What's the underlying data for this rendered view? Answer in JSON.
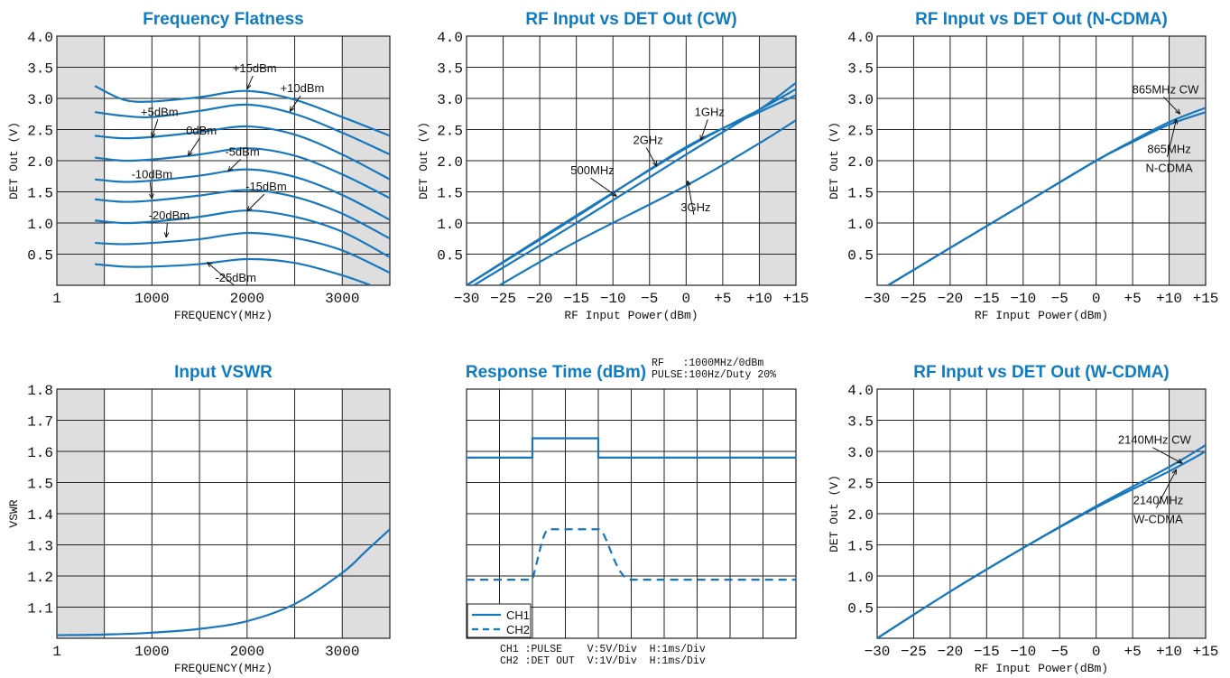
{
  "colors": {
    "series": "#1777bd",
    "shade": "#dedede",
    "grid": "#222222",
    "title": "#0f7cc1"
  },
  "chart_data": [
    {
      "id": "flatness",
      "type": "line",
      "title": "Frequency Flatness",
      "xlabel": "FREQUENCY(MHz)",
      "ylabel": "DET Out (V)",
      "xlim": [
        1,
        3500
      ],
      "ylim": [
        0,
        4.0
      ],
      "x_gridlines": [
        500,
        1000,
        1500,
        2000,
        2500,
        3000
      ],
      "y_gridlines": [
        0.5,
        1.0,
        1.5,
        2.0,
        2.5,
        3.0,
        3.5
      ],
      "xticks": [
        {
          "v": 1,
          "label": "1"
        },
        {
          "v": 1000,
          "label": "1000"
        },
        {
          "v": 2000,
          "label": "2000"
        },
        {
          "v": 3000,
          "label": "3000"
        }
      ],
      "yticks": [
        {
          "v": 0.5,
          "label": "0.5"
        },
        {
          "v": 1.0,
          "label": "1.0"
        },
        {
          "v": 1.5,
          "label": "1.5"
        },
        {
          "v": 2.0,
          "label": "2.0"
        },
        {
          "v": 2.5,
          "label": "2.5"
        },
        {
          "v": 3.0,
          "label": "3.0"
        },
        {
          "v": 3.5,
          "label": "3.5"
        },
        {
          "v": 4.0,
          "label": "4.0"
        }
      ],
      "shaded_x": [
        [
          1,
          500
        ],
        [
          3000,
          3500
        ]
      ],
      "series": [
        {
          "name": "+15dBm",
          "x": [
            400,
            700,
            1000,
            1500,
            2000,
            2500,
            3000,
            3500
          ],
          "y": [
            3.2,
            2.98,
            2.95,
            3.02,
            3.12,
            2.98,
            2.7,
            2.4
          ]
        },
        {
          "name": "+10dBm",
          "x": [
            400,
            700,
            1000,
            1500,
            2000,
            2500,
            3000,
            3500
          ],
          "y": [
            2.78,
            2.72,
            2.7,
            2.8,
            2.9,
            2.75,
            2.45,
            2.1
          ]
        },
        {
          "name": "+5dBm",
          "x": [
            400,
            700,
            1000,
            1500,
            2000,
            2500,
            3000,
            3500
          ],
          "y": [
            2.4,
            2.36,
            2.38,
            2.46,
            2.55,
            2.42,
            2.1,
            1.7
          ]
        },
        {
          "name": "0dBm",
          "x": [
            400,
            700,
            1000,
            1500,
            2000,
            2500,
            3000,
            3500
          ],
          "y": [
            2.05,
            2.0,
            2.02,
            2.1,
            2.2,
            2.08,
            1.78,
            1.4
          ]
        },
        {
          "name": "-5dBm",
          "x": [
            400,
            700,
            1000,
            1500,
            2000,
            2500,
            3000,
            3500
          ],
          "y": [
            1.7,
            1.66,
            1.68,
            1.76,
            1.86,
            1.74,
            1.45,
            1.05
          ]
        },
        {
          "name": "-10dBm",
          "x": [
            400,
            700,
            1000,
            1500,
            2000,
            2500,
            3000,
            3500
          ],
          "y": [
            1.38,
            1.34,
            1.36,
            1.44,
            1.53,
            1.42,
            1.15,
            0.75
          ]
        },
        {
          "name": "-15dBm",
          "x": [
            400,
            700,
            1000,
            1500,
            2000,
            2500,
            3000,
            3500
          ],
          "y": [
            1.04,
            1.0,
            1.02,
            1.1,
            1.2,
            1.1,
            0.86,
            0.45
          ]
        },
        {
          "name": "-20dBm",
          "x": [
            400,
            700,
            1000,
            1500,
            2000,
            2500,
            3000,
            3500
          ],
          "y": [
            0.68,
            0.66,
            0.68,
            0.74,
            0.84,
            0.76,
            0.56,
            0.2
          ]
        },
        {
          "name": "-25dBm",
          "x": [
            400,
            700,
            1000,
            1500,
            2000,
            2500,
            3000,
            3300
          ],
          "y": [
            0.34,
            0.3,
            0.3,
            0.34,
            0.42,
            0.36,
            0.16,
            0.0
          ]
        }
      ],
      "annotations": [
        {
          "text": "+15dBm",
          "x": 2000,
          "y": 3.12,
          "tx": 2080,
          "ty": 3.42
        },
        {
          "text": "+10dBm",
          "x": 2450,
          "y": 2.76,
          "tx": 2580,
          "ty": 3.1
        },
        {
          "text": "+5dBm",
          "x": 1000,
          "y": 2.34,
          "tx": 1080,
          "ty": 2.72
        },
        {
          "text": "0dBm",
          "x": 1380,
          "y": 2.05,
          "tx": 1520,
          "ty": 2.42
        },
        {
          "text": "-5dBm",
          "x": 1800,
          "y": 1.8,
          "tx": 1950,
          "ty": 2.08
        },
        {
          "text": "-10dBm",
          "x": 1000,
          "y": 1.36,
          "tx": 1000,
          "ty": 1.72
        },
        {
          "text": "-15dBm",
          "x": 2000,
          "y": 1.16,
          "tx": 2200,
          "ty": 1.52
        },
        {
          "text": "-20dBm",
          "x": 1150,
          "y": 0.74,
          "tx": 1180,
          "ty": 1.06
        },
        {
          "text": "-25dBm",
          "x": 1580,
          "y": 0.34,
          "tx": 1880,
          "ty": 0.06
        }
      ]
    },
    {
      "id": "cw",
      "type": "line",
      "title": "RF Input vs DET Out (CW)",
      "xlabel": "RF Input Power(dBm)",
      "ylabel": "DET Out (V)",
      "xlim": [
        -30,
        15
      ],
      "ylim": [
        0,
        4.0
      ],
      "x_gridlines": [
        -25,
        -20,
        -15,
        -10,
        -5,
        0,
        5,
        10
      ],
      "y_gridlines": [
        0.5,
        1.0,
        1.5,
        2.0,
        2.5,
        3.0,
        3.5
      ],
      "xticks": [
        {
          "v": -30,
          "label": "−30"
        },
        {
          "v": -25,
          "label": "−25"
        },
        {
          "v": -20,
          "label": "−20"
        },
        {
          "v": -15,
          "label": "−15"
        },
        {
          "v": -10,
          "label": "−10"
        },
        {
          "v": -5,
          "label": "−5"
        },
        {
          "v": 0,
          "label": "0"
        },
        {
          "v": 5,
          "label": "+5"
        },
        {
          "v": 10,
          "label": "+10"
        },
        {
          "v": 15,
          "label": "+15"
        }
      ],
      "yticks": [
        {
          "v": 0.5,
          "label": "0.5"
        },
        {
          "v": 1.0,
          "label": "1.0"
        },
        {
          "v": 1.5,
          "label": "1.5"
        },
        {
          "v": 2.0,
          "label": "2.0"
        },
        {
          "v": 2.5,
          "label": "2.5"
        },
        {
          "v": 3.0,
          "label": "3.0"
        },
        {
          "v": 3.5,
          "label": "3.5"
        },
        {
          "v": 4.0,
          "label": "4.0"
        }
      ],
      "shaded_x": [
        [
          10,
          15
        ]
      ],
      "series": [
        {
          "name": "500MHz",
          "x": [
            -30,
            -15,
            0,
            10,
            15
          ],
          "y": [
            0.0,
            1.1,
            2.22,
            2.78,
            3.05
          ]
        },
        {
          "name": "1GHz",
          "x": [
            -30,
            -15,
            0,
            10,
            15
          ],
          "y": [
            0.0,
            1.12,
            2.2,
            2.82,
            3.15
          ]
        },
        {
          "name": "2GHz",
          "x": [
            -29,
            -15,
            0,
            10,
            15
          ],
          "y": [
            0.0,
            1.0,
            2.1,
            2.82,
            3.25
          ]
        },
        {
          "name": "3GHz",
          "x": [
            -25.5,
            -15,
            0,
            10,
            15
          ],
          "y": [
            0.0,
            0.7,
            1.6,
            2.28,
            2.65
          ]
        }
      ],
      "annotations": [
        {
          "text": "1GHz",
          "x": 2,
          "y": 2.3,
          "tx": 3.2,
          "ty": 2.72
        },
        {
          "text": "2GHz",
          "x": -4,
          "y": 1.88,
          "tx": -5.2,
          "ty": 2.27
        },
        {
          "text": "500MHz",
          "x": -9.5,
          "y": 1.4,
          "tx": -12.8,
          "ty": 1.78
        },
        {
          "text": "3GHz",
          "x": 0.2,
          "y": 1.65,
          "tx": 1.3,
          "ty": 1.19
        }
      ]
    },
    {
      "id": "ncdma",
      "type": "line",
      "title": "RF Input vs DET Out (N-CDMA)",
      "xlabel": "RF Input Power(dBm)",
      "ylabel": "DET Out (V)",
      "xlim": [
        -30,
        15
      ],
      "ylim": [
        0,
        4.0
      ],
      "x_gridlines": [
        -25,
        -20,
        -15,
        -10,
        -5,
        0,
        5,
        10
      ],
      "y_gridlines": [
        0.5,
        1.0,
        1.5,
        2.0,
        2.5,
        3.0,
        3.5
      ],
      "xticks": [
        {
          "v": -30,
          "label": "−30"
        },
        {
          "v": -25,
          "label": "−25"
        },
        {
          "v": -20,
          "label": "−20"
        },
        {
          "v": -15,
          "label": "−15"
        },
        {
          "v": -10,
          "label": "−10"
        },
        {
          "v": -5,
          "label": "−5"
        },
        {
          "v": 0,
          "label": "0"
        },
        {
          "v": 5,
          "label": "+5"
        },
        {
          "v": 10,
          "label": "+10"
        },
        {
          "v": 15,
          "label": "+15"
        }
      ],
      "yticks": [
        {
          "v": 0.5,
          "label": "0.5"
        },
        {
          "v": 1.0,
          "label": "1.0"
        },
        {
          "v": 1.5,
          "label": "1.5"
        },
        {
          "v": 2.0,
          "label": "2.0"
        },
        {
          "v": 2.5,
          "label": "2.5"
        },
        {
          "v": 3.0,
          "label": "3.0"
        },
        {
          "v": 3.5,
          "label": "3.5"
        },
        {
          "v": 4.0,
          "label": "4.0"
        }
      ],
      "shaded_x": [
        [
          10,
          15
        ]
      ],
      "series": [
        {
          "name": "865MHz CW",
          "x": [
            -28.5,
            -20,
            -10,
            0,
            5,
            10,
            15
          ],
          "y": [
            0.0,
            0.6,
            1.3,
            2.0,
            2.32,
            2.62,
            2.85
          ]
        },
        {
          "name": "865MHz N-CDMA",
          "x": [
            -28.5,
            -20,
            -10,
            0,
            5,
            10,
            15
          ],
          "y": [
            0.0,
            0.6,
            1.3,
            2.0,
            2.3,
            2.58,
            2.78
          ]
        }
      ],
      "annotations": [
        {
          "text": "865MHz CW",
          "x": 11.5,
          "y": 2.72,
          "tx": 9.5,
          "ty": 3.08
        },
        {
          "text": "865MHz",
          "x": 11,
          "y": 2.64,
          "tx": 10,
          "ty": 2.12
        },
        {
          "text": "N-CDMA",
          "tx": 10,
          "ty": 1.82
        }
      ]
    },
    {
      "id": "vswr",
      "type": "line",
      "title": "Input VSWR",
      "xlabel": "FREQUENCY(MHz)",
      "ylabel": "VSWR",
      "xlim": [
        1,
        3500
      ],
      "ylim": [
        1.0,
        1.8
      ],
      "x_gridlines": [
        500,
        1000,
        1500,
        2000,
        2500,
        3000
      ],
      "y_gridlines": [
        1.1,
        1.2,
        1.3,
        1.4,
        1.5,
        1.6,
        1.7
      ],
      "xticks": [
        {
          "v": 1,
          "label": "1"
        },
        {
          "v": 1000,
          "label": "1000"
        },
        {
          "v": 2000,
          "label": "2000"
        },
        {
          "v": 3000,
          "label": "3000"
        }
      ],
      "yticks": [
        {
          "v": 1.1,
          "label": "1.1"
        },
        {
          "v": 1.2,
          "label": "1.2"
        },
        {
          "v": 1.3,
          "label": "1.3"
        },
        {
          "v": 1.4,
          "label": "1.4"
        },
        {
          "v": 1.5,
          "label": "1.5"
        },
        {
          "v": 1.6,
          "label": "1.6"
        },
        {
          "v": 1.7,
          "label": "1.7"
        },
        {
          "v": 1.8,
          "label": "1.8"
        }
      ],
      "shaded_x": [
        [
          1,
          500
        ],
        [
          3000,
          3500
        ]
      ],
      "series": [
        {
          "name": "VSWR",
          "x": [
            1,
            500,
            1000,
            1500,
            2000,
            2500,
            3000,
            3250,
            3500
          ],
          "y": [
            1.01,
            1.012,
            1.018,
            1.03,
            1.055,
            1.11,
            1.21,
            1.28,
            1.35
          ]
        }
      ],
      "annotations": []
    },
    {
      "id": "response",
      "type": "line",
      "title": "Response Time (dBm)",
      "condition": [
        "RF   :1000MHz/0dBm",
        "PULSE:100Hz/Duty 20%"
      ],
      "xlim": [
        0,
        10
      ],
      "ylim": [
        0,
        8
      ],
      "x_gridlines": [
        1,
        2,
        3,
        4,
        5,
        6,
        7,
        8,
        9
      ],
      "y_gridlines": [
        1,
        2,
        3,
        4,
        5,
        6,
        7
      ],
      "xticks": [],
      "yticks": [],
      "shaded_x": [],
      "series": [
        {
          "name": "CH1",
          "dash": false,
          "x": [
            0,
            2,
            2,
            4,
            4,
            10
          ],
          "y": [
            5.8,
            5.8,
            6.42,
            6.42,
            5.8,
            5.8
          ]
        },
        {
          "name": "CH2",
          "dash": true,
          "x": [
            0,
            2,
            2.5,
            4,
            5,
            10
          ],
          "y": [
            1.88,
            1.88,
            3.5,
            3.5,
            1.88,
            1.88
          ],
          "smooth_knees": true
        }
      ],
      "legend": [
        "CH1",
        "CH2"
      ],
      "notes": [
        "CH1 :PULSE    V:5V/Div  H:1ms/Div",
        "CH2 :DET OUT  V:1V/Div  H:1ms/Div"
      ]
    },
    {
      "id": "wcdma",
      "type": "line",
      "title": "RF Input vs DET Out (W-CDMA)",
      "xlabel": "RF Input Power(dBm)",
      "ylabel": "DET Out (V)",
      "xlim": [
        -30,
        15
      ],
      "ylim": [
        0,
        4.0
      ],
      "x_gridlines": [
        -25,
        -20,
        -15,
        -10,
        -5,
        0,
        5,
        10
      ],
      "y_gridlines": [
        0.5,
        1.0,
        1.5,
        2.0,
        2.5,
        3.0,
        3.5
      ],
      "xticks": [
        {
          "v": -30,
          "label": "−30"
        },
        {
          "v": -25,
          "label": "−25"
        },
        {
          "v": -20,
          "label": "−20"
        },
        {
          "v": -15,
          "label": "−15"
        },
        {
          "v": -10,
          "label": "−10"
        },
        {
          "v": -5,
          "label": "−5"
        },
        {
          "v": 0,
          "label": "0"
        },
        {
          "v": 5,
          "label": "+5"
        },
        {
          "v": 10,
          "label": "+10"
        },
        {
          "v": 15,
          "label": "+15"
        }
      ],
      "yticks": [
        {
          "v": 0.5,
          "label": "0.5"
        },
        {
          "v": 1.0,
          "label": "1.0"
        },
        {
          "v": 1.5,
          "label": "1.5"
        },
        {
          "v": 2.0,
          "label": "2.0"
        },
        {
          "v": 2.5,
          "label": "2.5"
        },
        {
          "v": 3.0,
          "label": "3.0"
        },
        {
          "v": 3.5,
          "label": "3.5"
        },
        {
          "v": 4.0,
          "label": "4.0"
        }
      ],
      "shaded_x": [
        [
          10,
          15
        ]
      ],
      "series": [
        {
          "name": "2140MHz CW",
          "x": [
            -30,
            -20,
            -10,
            0,
            10,
            15
          ],
          "y": [
            0.0,
            0.75,
            1.45,
            2.12,
            2.75,
            3.1
          ]
        },
        {
          "name": "2140MHz W-CDMA",
          "x": [
            -30,
            -20,
            -10,
            0,
            10,
            15
          ],
          "y": [
            0.0,
            0.75,
            1.45,
            2.1,
            2.68,
            3.0
          ]
        }
      ],
      "annotations": [
        {
          "text": "2140MHz CW",
          "x": 11.8,
          "y": 2.78,
          "tx": 8,
          "ty": 3.12
        },
        {
          "text": "2140MHz",
          "x": 11,
          "y": 2.68,
          "tx": 8.5,
          "ty": 2.15
        },
        {
          "text": "W-CDMA",
          "tx": 8.5,
          "ty": 1.85
        }
      ]
    }
  ]
}
